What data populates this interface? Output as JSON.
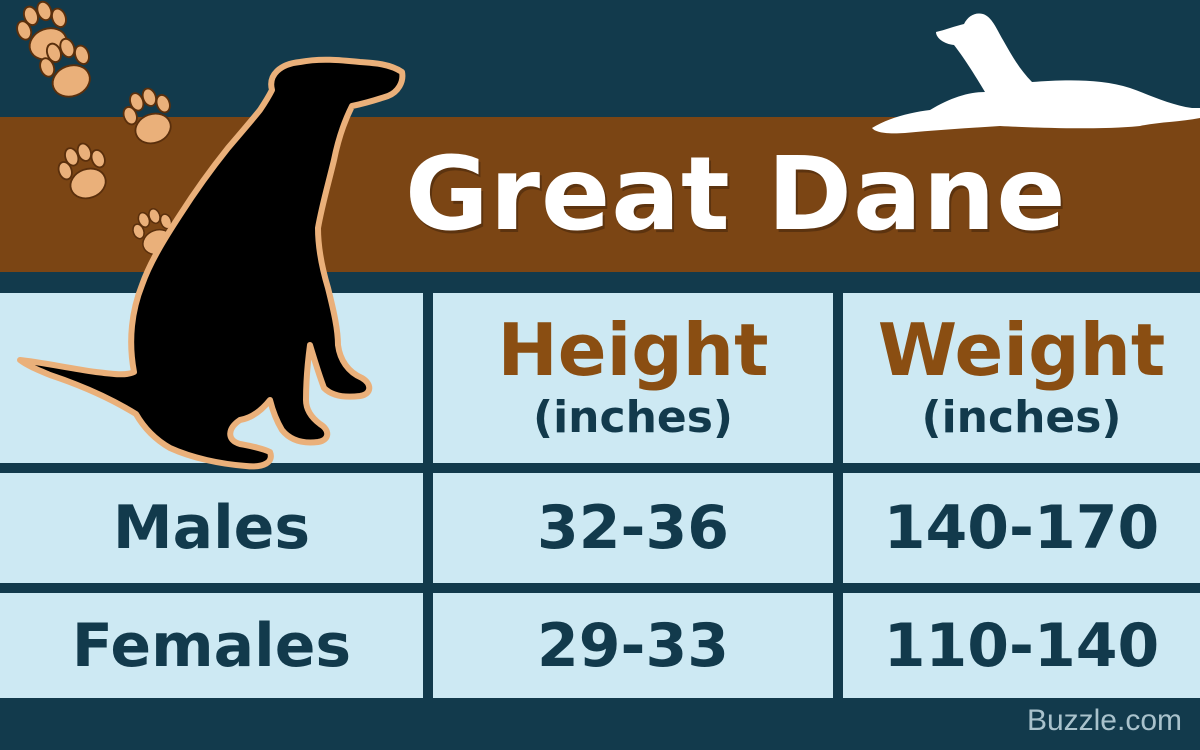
{
  "title": "Great Dane",
  "columns": [
    {
      "label": "Height",
      "unit": "(inches)"
    },
    {
      "label": "Weight",
      "unit": "(inches)"
    }
  ],
  "rows": [
    {
      "label": "Males",
      "height": "32-36",
      "weight": "140-170"
    },
    {
      "label": "Females",
      "height": "29-33",
      "weight": "110-140"
    }
  ],
  "credit": "Buzzle.com",
  "colors": {
    "background": "#123a4c",
    "band": "#7b4514",
    "cell": "#cde9f3",
    "header_text": "#8a4e12",
    "paw": "#eab07a"
  },
  "icons": [
    "paw-print-icon",
    "sitting-dog-silhouette",
    "lying-dog-silhouette"
  ]
}
